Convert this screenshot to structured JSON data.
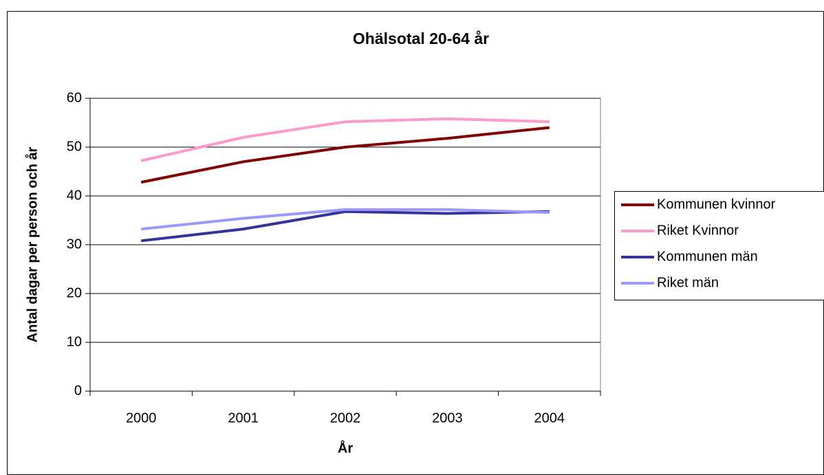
{
  "chart_data": {
    "type": "line",
    "title": "Ohälsotal 20-64 år",
    "x_label": "År",
    "y_label": "Antal dagar per person och år",
    "categories": [
      "2000",
      "2001",
      "2002",
      "2003",
      "2004"
    ],
    "series": [
      {
        "name": "Kommunen kvinnor",
        "color": "#800000",
        "values": [
          42.8,
          47,
          50,
          51.8,
          54
        ]
      },
      {
        "name": "Riket Kvinnor",
        "color": "#ff99cc",
        "values": [
          47.2,
          52,
          55.2,
          55.8,
          55.2
        ]
      },
      {
        "name": "Kommunen män",
        "color": "#333399",
        "values": [
          30.8,
          33.2,
          36.8,
          36.4,
          36.8
        ]
      },
      {
        "name": "Riket män",
        "color": "#9999ff",
        "values": [
          33.2,
          35.4,
          37.2,
          37.2,
          36.6
        ]
      }
    ],
    "ylim": [
      0,
      60
    ],
    "yticks": [
      0,
      10,
      20,
      30,
      40,
      50,
      60
    ],
    "grid": true,
    "legend": "right"
  }
}
